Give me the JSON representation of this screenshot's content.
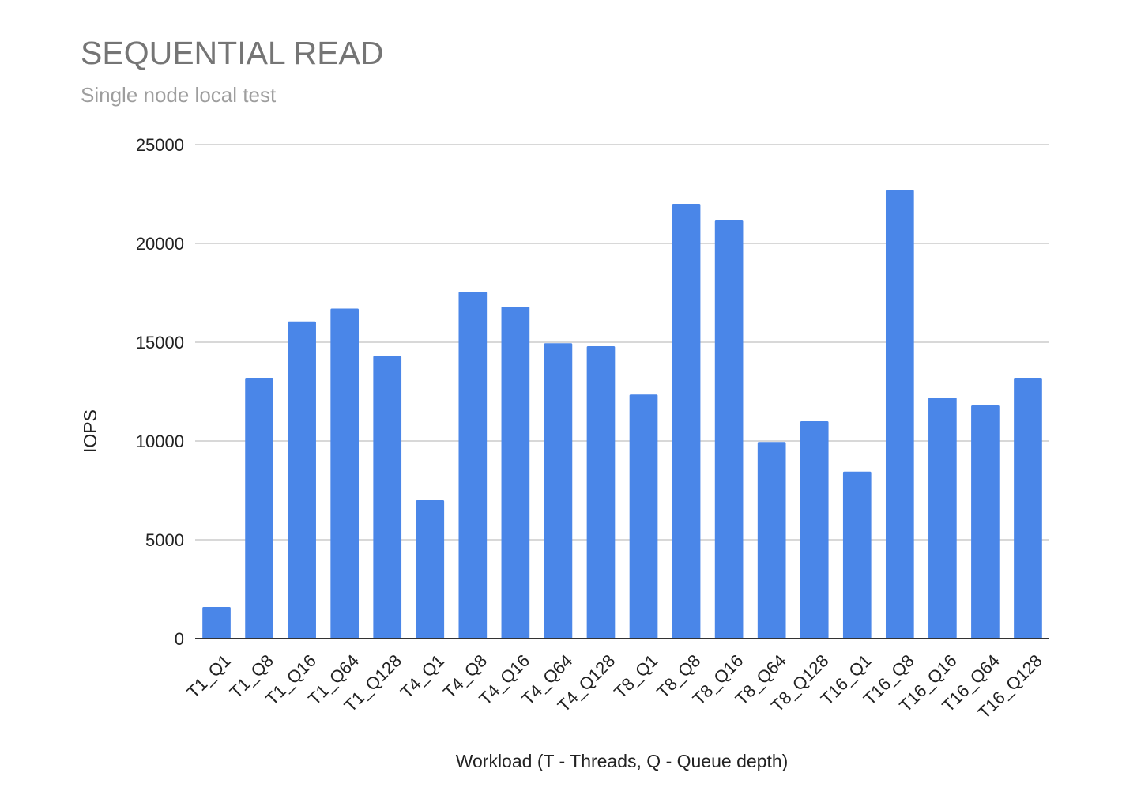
{
  "chart_data": {
    "type": "bar",
    "title": "SEQUENTIAL READ",
    "subtitle": "Single node local test",
    "xlabel": "Workload (T - Threads, Q - Queue depth)",
    "ylabel": "IOPS",
    "ylim": [
      0,
      25000
    ],
    "yticks": [
      "0",
      "5000",
      "10000",
      "15000",
      "20000",
      "25000"
    ],
    "grid": true,
    "categories": [
      "T1_Q1",
      "T1_Q8",
      "T1_Q16",
      "T1_Q64",
      "T1_Q128",
      "T4_Q1",
      "T4_Q8",
      "T4_Q16",
      "T4_Q64",
      "T4_Q128",
      "T8_Q1",
      "T8_Q8",
      "T8_Q16",
      "T8_Q64",
      "T8_Q128",
      "T16_Q1",
      "T16_Q8",
      "T16_Q16",
      "T16_Q64",
      "T16_Q128"
    ],
    "values": [
      1600,
      13200,
      16050,
      16700,
      14300,
      7000,
      17550,
      16800,
      14950,
      14800,
      12350,
      22000,
      21200,
      9950,
      11000,
      8450,
      22700,
      12200,
      11800,
      13200
    ],
    "colors": {
      "bar": "#4a86e8",
      "grid": "#cccccc",
      "axis": "#333333",
      "title": "#757575",
      "subtitle": "#9e9e9e",
      "text": "#222222"
    }
  }
}
